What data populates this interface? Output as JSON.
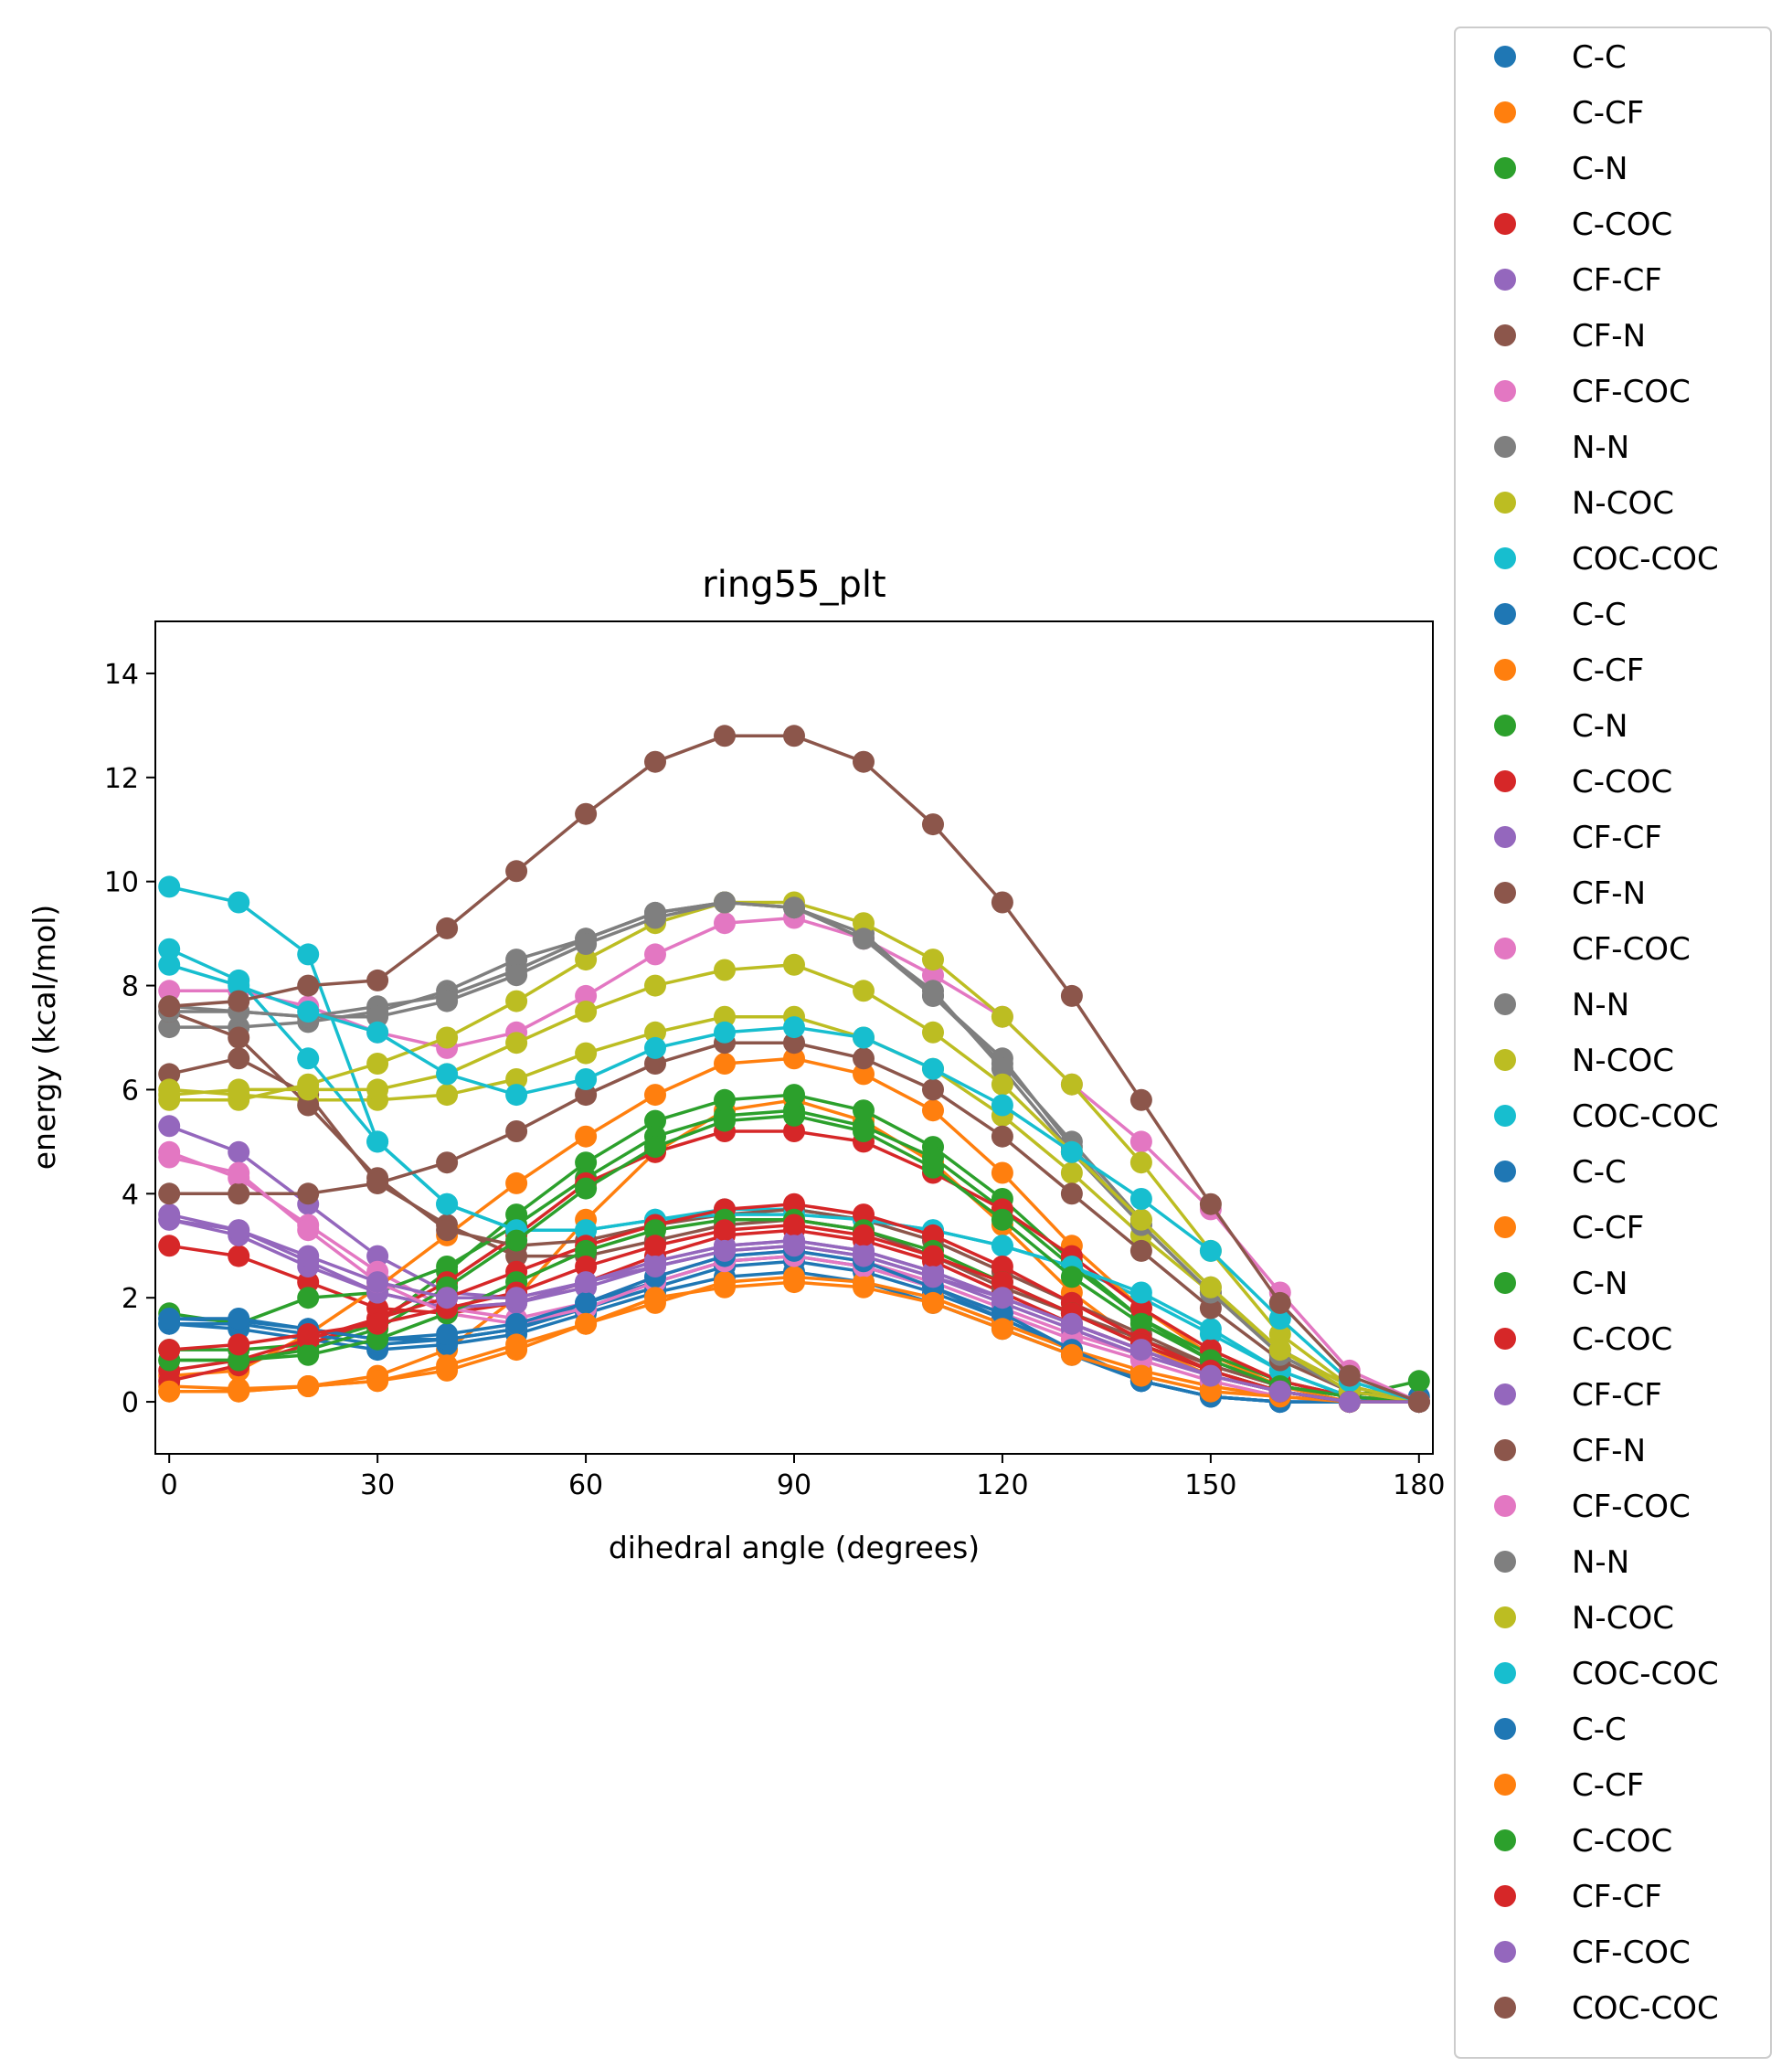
{
  "chart_data": {
    "type": "line",
    "title": "ring55_plt",
    "xlabel": "dihedral angle (degrees)",
    "ylabel": "energy (kcal/mol)",
    "xlim": [
      -2,
      182
    ],
    "ylim": [
      -1,
      15
    ],
    "xticks": [
      0,
      30,
      60,
      90,
      120,
      150,
      180
    ],
    "yticks": [
      0,
      2,
      4,
      6,
      8,
      10,
      12,
      14
    ],
    "grid": false,
    "legend_position": "outside-right",
    "x": [
      0,
      10,
      20,
      30,
      40,
      50,
      60,
      70,
      80,
      90,
      100,
      110,
      120,
      130,
      140,
      150,
      160,
      170,
      180
    ],
    "series": [
      {
        "name": "C-C",
        "color": "#1f77b4",
        "values": [
          1.6,
          1.55,
          1.4,
          1.2,
          1.2,
          1.4,
          1.8,
          2.2,
          2.6,
          2.7,
          2.5,
          2.1,
          1.6,
          1.0,
          0.4,
          0.1,
          0.0,
          0.0,
          0.1
        ]
      },
      {
        "name": "C-CF",
        "color": "#ff7f0e",
        "values": [
          0.3,
          0.25,
          0.3,
          0.5,
          1.0,
          2.0,
          3.5,
          4.8,
          5.6,
          5.8,
          5.4,
          4.6,
          3.4,
          2.1,
          1.1,
          0.5,
          0.2,
          0.0,
          0.0
        ]
      },
      {
        "name": "C-N",
        "color": "#2ca02c",
        "values": [
          1.0,
          1.0,
          1.1,
          1.5,
          2.5,
          3.6,
          4.6,
          5.4,
          5.8,
          5.9,
          5.6,
          4.9,
          3.9,
          2.7,
          1.6,
          0.8,
          0.3,
          0.1,
          0.0
        ]
      },
      {
        "name": "C-COC",
        "color": "#d62728",
        "values": [
          3.0,
          2.8,
          2.3,
          1.8,
          1.7,
          1.9,
          2.3,
          2.8,
          3.2,
          3.3,
          3.1,
          2.7,
          2.1,
          1.5,
          1.0,
          0.5,
          0.2,
          0.0,
          0.0
        ]
      },
      {
        "name": "CF-CF",
        "color": "#9467bd",
        "values": [
          5.3,
          4.8,
          3.8,
          2.8,
          2.1,
          2.0,
          2.3,
          2.7,
          3.0,
          3.1,
          2.9,
          2.5,
          2.0,
          1.5,
          1.0,
          0.5,
          0.2,
          0.0,
          0.0
        ]
      },
      {
        "name": "CF-N",
        "color": "#8c564b",
        "values": [
          6.3,
          6.6,
          5.9,
          4.2,
          3.4,
          2.8,
          2.8,
          3.1,
          3.4,
          3.5,
          3.3,
          2.8,
          2.2,
          1.7,
          1.2,
          0.7,
          0.3,
          0.1,
          0.0
        ]
      },
      {
        "name": "CF-COC",
        "color": "#e377c2",
        "values": [
          4.8,
          4.3,
          3.4,
          2.5,
          1.8,
          1.6,
          1.9,
          2.4,
          2.8,
          2.9,
          2.7,
          2.3,
          1.8,
          1.3,
          0.9,
          0.5,
          0.2,
          0.0,
          0.0
        ]
      },
      {
        "name": "N-N",
        "color": "#7f7f7f",
        "values": [
          7.2,
          7.2,
          7.3,
          7.5,
          7.9,
          8.5,
          8.9,
          9.4,
          9.6,
          9.5,
          8.9,
          7.8,
          6.5,
          5.0,
          3.5,
          2.2,
          1.0,
          0.3,
          0.0
        ]
      },
      {
        "name": "N-COC",
        "color": "#bcbd22",
        "values": [
          6.0,
          5.9,
          5.8,
          5.8,
          5.9,
          6.2,
          6.7,
          7.1,
          7.4,
          7.4,
          7.0,
          6.4,
          5.5,
          4.4,
          3.2,
          2.1,
          1.0,
          0.3,
          0.0
        ]
      },
      {
        "name": "COC-COC",
        "color": "#17becf",
        "values": [
          9.9,
          9.6,
          8.6,
          5.0,
          3.8,
          3.3,
          3.3,
          3.5,
          3.7,
          3.7,
          3.5,
          3.3,
          3.0,
          2.6,
          2.0,
          1.3,
          0.6,
          0.1,
          0.0
        ]
      },
      {
        "name": "C-C",
        "color": "#1f77b4",
        "values": [
          1.5,
          1.4,
          1.2,
          1.0,
          1.1,
          1.3,
          1.7,
          2.1,
          2.4,
          2.5,
          2.3,
          1.9,
          1.4,
          0.9,
          0.4,
          0.1,
          0.0,
          0.0,
          0.0
        ]
      },
      {
        "name": "C-CF",
        "color": "#ff7f0e",
        "values": [
          0.5,
          0.6,
          1.3,
          2.2,
          3.2,
          4.2,
          5.1,
          5.9,
          6.5,
          6.6,
          6.3,
          5.6,
          4.4,
          3.0,
          1.8,
          0.9,
          0.3,
          0.0,
          0.0
        ]
      },
      {
        "name": "C-N",
        "color": "#2ca02c",
        "values": [
          1.7,
          1.5,
          2.0,
          2.1,
          2.6,
          3.4,
          4.3,
          5.1,
          5.5,
          5.6,
          5.3,
          4.7,
          3.7,
          2.6,
          1.6,
          0.9,
          0.4,
          0.1,
          0.4
        ]
      },
      {
        "name": "C-COC",
        "color": "#d62728",
        "values": [
          0.4,
          0.7,
          1.1,
          1.6,
          2.3,
          3.2,
          4.2,
          4.8,
          5.2,
          5.2,
          5.0,
          4.4,
          3.7,
          2.8,
          1.8,
          1.0,
          0.4,
          0.1,
          0.0
        ]
      },
      {
        "name": "CF-CF",
        "color": "#9467bd",
        "values": [
          3.5,
          3.2,
          2.6,
          2.1,
          1.8,
          1.9,
          2.2,
          2.6,
          2.9,
          3.0,
          2.8,
          2.4,
          1.9,
          1.4,
          0.9,
          0.5,
          0.2,
          0.0,
          0.0
        ]
      },
      {
        "name": "CF-N",
        "color": "#8c564b",
        "values": [
          7.5,
          7.0,
          5.7,
          4.3,
          3.3,
          3.0,
          3.1,
          3.4,
          3.6,
          3.7,
          3.5,
          3.1,
          2.5,
          1.9,
          1.3,
          0.7,
          0.3,
          0.1,
          0.0
        ]
      },
      {
        "name": "CF-COC",
        "color": "#e377c2",
        "values": [
          7.9,
          7.9,
          7.6,
          7.1,
          6.8,
          7.1,
          7.8,
          8.6,
          9.2,
          9.3,
          8.9,
          8.2,
          7.4,
          6.1,
          5.0,
          3.7,
          2.1,
          0.6,
          0.0
        ]
      },
      {
        "name": "N-N",
        "color": "#7f7f7f",
        "values": [
          7.6,
          7.5,
          7.4,
          7.6,
          7.8,
          8.3,
          8.9,
          9.4,
          9.6,
          9.5,
          9.0,
          7.8,
          6.6,
          4.9,
          3.4,
          2.1,
          0.9,
          0.2,
          0.0
        ]
      },
      {
        "name": "N-COC",
        "color": "#bcbd22",
        "values": [
          5.8,
          5.8,
          6.1,
          6.5,
          7.0,
          7.7,
          8.5,
          9.2,
          9.6,
          9.6,
          9.2,
          8.5,
          7.4,
          6.1,
          4.6,
          2.9,
          1.3,
          0.3,
          0.0
        ]
      },
      {
        "name": "COC-COC",
        "color": "#17becf",
        "values": [
          8.7,
          8.1,
          6.6,
          5.0,
          3.8,
          3.3,
          3.3,
          3.5,
          3.6,
          3.6,
          3.5,
          3.3,
          3.0,
          2.6,
          2.1,
          1.4,
          0.6,
          0.1,
          0.0
        ]
      },
      {
        "name": "C-C",
        "color": "#1f77b4",
        "values": [
          1.5,
          1.5,
          1.3,
          1.1,
          1.2,
          1.4,
          1.9,
          2.3,
          2.7,
          2.8,
          2.6,
          2.2,
          1.6,
          1.0,
          0.4,
          0.1,
          0.0,
          0.0,
          0.0
        ]
      },
      {
        "name": "C-CF",
        "color": "#ff7f0e",
        "values": [
          0.2,
          0.2,
          0.3,
          0.4,
          0.6,
          1.0,
          1.5,
          1.9,
          2.3,
          2.4,
          2.3,
          2.0,
          1.5,
          1.0,
          0.6,
          0.3,
          0.1,
          0.0,
          0.0
        ]
      },
      {
        "name": "C-N",
        "color": "#2ca02c",
        "values": [
          0.8,
          0.8,
          1.0,
          1.4,
          2.2,
          3.1,
          4.1,
          4.9,
          5.4,
          5.5,
          5.2,
          4.5,
          3.5,
          2.4,
          1.5,
          0.8,
          0.3,
          0.1,
          0.0
        ]
      },
      {
        "name": "C-COC",
        "color": "#d62728",
        "values": [
          0.6,
          0.8,
          1.2,
          1.6,
          2.0,
          2.5,
          3.0,
          3.4,
          3.7,
          3.8,
          3.6,
          3.2,
          2.6,
          1.9,
          1.2,
          0.6,
          0.2,
          0.0,
          0.0
        ]
      },
      {
        "name": "CF-CF",
        "color": "#9467bd",
        "values": [
          3.6,
          3.3,
          2.7,
          2.1,
          1.8,
          1.9,
          2.3,
          2.7,
          3.0,
          3.1,
          2.9,
          2.5,
          2.0,
          1.5,
          1.0,
          0.5,
          0.2,
          0.0,
          0.0
        ]
      },
      {
        "name": "CF-N",
        "color": "#8c564b",
        "values": [
          4.0,
          4.0,
          4.0,
          4.2,
          4.6,
          5.2,
          5.9,
          6.5,
          6.9,
          6.9,
          6.6,
          6.0,
          5.1,
          4.0,
          2.9,
          1.8,
          0.8,
          0.2,
          0.0
        ]
      },
      {
        "name": "CF-COC",
        "color": "#e377c2",
        "values": [
          4.7,
          4.4,
          3.3,
          2.3,
          1.7,
          1.5,
          1.8,
          2.3,
          2.7,
          2.8,
          2.6,
          2.2,
          1.7,
          1.2,
          0.8,
          0.4,
          0.1,
          0.0,
          0.0
        ]
      },
      {
        "name": "N-N",
        "color": "#7f7f7f",
        "values": [
          7.5,
          7.5,
          7.4,
          7.4,
          7.7,
          8.2,
          8.8,
          9.3,
          9.6,
          9.5,
          8.9,
          7.9,
          6.4,
          4.8,
          3.4,
          2.1,
          0.9,
          0.2,
          0.0
        ]
      },
      {
        "name": "N-COC",
        "color": "#bcbd22",
        "values": [
          5.9,
          6.0,
          6.0,
          6.0,
          6.3,
          6.9,
          7.5,
          8.0,
          8.3,
          8.4,
          7.9,
          7.1,
          6.1,
          4.8,
          3.5,
          2.2,
          1.0,
          0.2,
          0.0
        ]
      },
      {
        "name": "COC-COC",
        "color": "#17becf",
        "values": [
          8.4,
          8.0,
          7.5,
          7.1,
          6.3,
          5.9,
          6.2,
          6.8,
          7.1,
          7.2,
          7.0,
          6.4,
          5.7,
          4.8,
          3.9,
          2.9,
          1.6,
          0.4,
          0.0
        ]
      },
      {
        "name": "C-C",
        "color": "#1f77b4",
        "values": [
          1.6,
          1.6,
          1.4,
          1.2,
          1.3,
          1.5,
          1.9,
          2.4,
          2.8,
          2.9,
          2.7,
          2.2,
          1.7,
          1.0,
          0.4,
          0.1,
          0.0,
          0.0,
          0.0
        ]
      },
      {
        "name": "C-CF",
        "color": "#ff7f0e",
        "values": [
          0.2,
          0.2,
          0.3,
          0.4,
          0.7,
          1.1,
          1.5,
          2.0,
          2.2,
          2.3,
          2.2,
          1.9,
          1.4,
          0.9,
          0.5,
          0.2,
          0.1,
          0.0,
          0.0
        ]
      },
      {
        "name": "C-COC",
        "color": "#2ca02c",
        "values": [
          0.8,
          0.8,
          0.9,
          1.2,
          1.7,
          2.3,
          2.9,
          3.3,
          3.5,
          3.5,
          3.3,
          2.9,
          2.3,
          1.7,
          1.1,
          0.6,
          0.2,
          0.0,
          0.0
        ]
      },
      {
        "name": "CF-CF",
        "color": "#d62728",
        "values": [
          1.0,
          1.1,
          1.3,
          1.5,
          1.8,
          2.1,
          2.6,
          3.0,
          3.3,
          3.4,
          3.2,
          2.8,
          2.3,
          1.7,
          1.1,
          0.6,
          0.2,
          0.0,
          0.0
        ]
      },
      {
        "name": "CF-COC",
        "color": "#9467bd",
        "values": [
          3.5,
          3.3,
          2.8,
          2.3,
          2.0,
          2.0,
          2.3,
          2.6,
          2.9,
          3.0,
          2.8,
          2.4,
          2.0,
          1.5,
          1.0,
          0.5,
          0.2,
          0.0,
          0.0
        ]
      },
      {
        "name": "COC-COC",
        "color": "#8c564b",
        "values": [
          7.6,
          7.7,
          8.0,
          8.1,
          9.1,
          10.2,
          11.3,
          12.3,
          12.8,
          12.8,
          12.3,
          11.1,
          9.6,
          7.8,
          5.8,
          3.8,
          1.9,
          0.5,
          0.0
        ]
      }
    ]
  }
}
